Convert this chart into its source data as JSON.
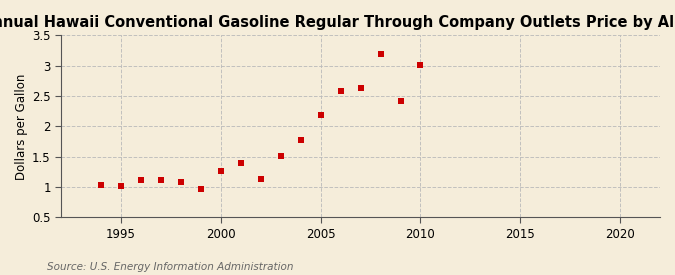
{
  "title": "Annual Hawaii Conventional Gasoline Regular Through Company Outlets Price by All Sellers",
  "ylabel": "Dollars per Gallon",
  "source": "Source: U.S. Energy Information Administration",
  "years": [
    1994,
    1995,
    1996,
    1997,
    1998,
    1999,
    2000,
    2001,
    2002,
    2003,
    2004,
    2005,
    2006,
    2007,
    2008,
    2009,
    2010
  ],
  "values": [
    1.03,
    1.02,
    1.12,
    1.12,
    1.09,
    0.97,
    1.27,
    1.4,
    1.14,
    1.51,
    1.77,
    2.19,
    2.58,
    2.63,
    3.19,
    2.41,
    3.01
  ],
  "marker_color": "#cc0000",
  "bg_color": "#f5edda",
  "grid_color": "#bbbbbb",
  "spine_color": "#555555",
  "xlim": [
    1992,
    2022
  ],
  "ylim": [
    0.5,
    3.5
  ],
  "xticks": [
    1995,
    2000,
    2005,
    2010,
    2015,
    2020
  ],
  "yticks": [
    0.5,
    1.0,
    1.5,
    2.0,
    2.5,
    3.0,
    3.5
  ],
  "title_fontsize": 10.5,
  "label_fontsize": 8.5,
  "source_fontsize": 7.5
}
